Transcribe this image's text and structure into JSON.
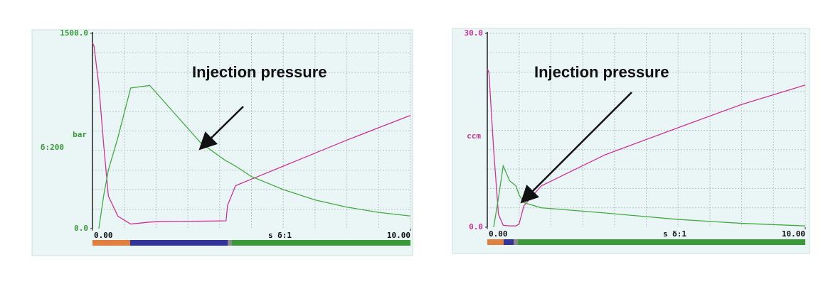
{
  "chart_data": [
    {
      "type": "line",
      "annotation": "Injection pressure",
      "y_label": "bar",
      "y_scale_label": "δ:200",
      "x_label": "s δ:1",
      "axis_color": "#3a9a3a",
      "grid": true,
      "xlim": [
        0,
        10
      ],
      "ylim": [
        0,
        1500
      ],
      "xticks": [
        {
          "value": 0,
          "label": "0.00"
        },
        {
          "value": 10,
          "label": "10.00"
        }
      ],
      "yticks": [
        {
          "value": 0,
          "label": "0.0"
        },
        {
          "value": 1500,
          "label": "1500.0"
        }
      ],
      "x": [
        0,
        0.05,
        0.2,
        0.35,
        0.5,
        0.8,
        1.2,
        1.8,
        2.2,
        3.4,
        4.2,
        4.25,
        4.5,
        5,
        6,
        7,
        8,
        9,
        10
      ],
      "series": [
        {
          "color": "#cc3399",
          "values": [
            1430,
            1400,
            1100,
            650,
            250,
            95,
            35,
            50,
            55,
            57,
            60,
            180,
            330,
            380,
            480,
            580,
            680,
            775,
            870
          ]
        },
        {
          "color": "#44aa44",
          "values": [
            null,
            null,
            0,
            250,
            450,
            700,
            1080,
            1100,
            990,
            660,
            520,
            515,
            480,
            400,
            300,
            220,
            165,
            125,
            97
          ]
        }
      ]
    },
    {
      "type": "line",
      "annotation": "Injection pressure",
      "y_label": "ccm",
      "x_label": "s δ:1",
      "axis_color": "#cc3399",
      "grid": true,
      "xlim": [
        0,
        10
      ],
      "ylim": [
        0,
        30
      ],
      "xticks": [
        {
          "value": 0,
          "label": "0.00"
        },
        {
          "value": 10,
          "label": "10.00"
        }
      ],
      "yticks": [
        {
          "value": 0,
          "label": "0.0"
        },
        {
          "value": 30,
          "label": "30.0"
        }
      ],
      "x": [
        0,
        0.05,
        0.2,
        0.35,
        0.5,
        0.7,
        0.9,
        1.0,
        1.15,
        1.7,
        3.7,
        6,
        8,
        10
      ],
      "series": [
        {
          "color": "#cc3399",
          "values": [
            24.5,
            24,
            12,
            2,
            0.3,
            0.2,
            0.2,
            0.5,
            3.3,
            6.4,
            11.2,
            15.4,
            19,
            22
          ]
        },
        {
          "color": "#44aa44",
          "values": [
            null,
            null,
            0,
            4.5,
            9.5,
            7.2,
            6.4,
            5,
            3.8,
            3,
            2.2,
            1.2,
            0.6,
            0.2
          ]
        }
      ]
    }
  ]
}
